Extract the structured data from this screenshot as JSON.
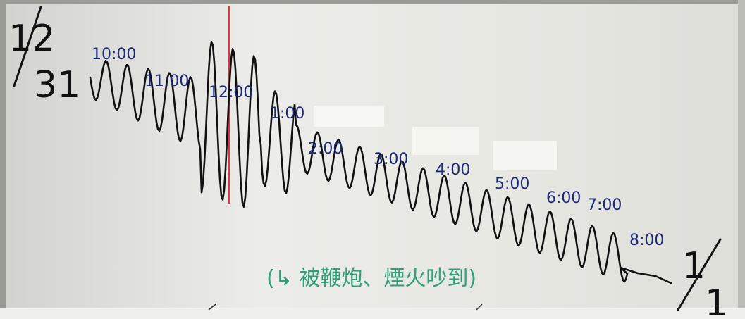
{
  "date_start": {
    "top": "12",
    "bottom": "31"
  },
  "date_end": {
    "top": "1",
    "bottom": "1"
  },
  "times": [
    "10:00",
    "11:00",
    "12:00",
    "1:00",
    "2:00",
    "3:00",
    "4:00",
    "5:00",
    "6:00",
    "7:00",
    "8:00"
  ],
  "note": "(↳ 被鞭炮、煙火吵到)",
  "colors": {
    "pencil": "#111111",
    "ink_blue": "#1f2a7a",
    "ink_green": "#2fa07a",
    "marker_red": "#d6363c"
  }
}
